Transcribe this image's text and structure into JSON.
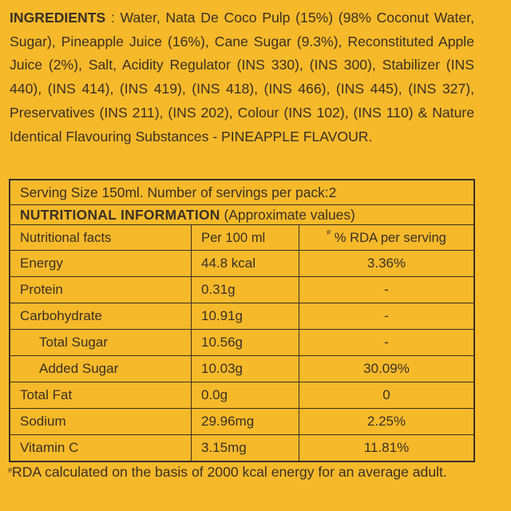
{
  "ingredients": {
    "heading": "INGREDIENTS",
    "text": ": Water, Nata De Coco Pulp (15%) (98% Coconut Water, Sugar), Pineapple Juice (16%), Cane Sugar (9.3%), Reconstituted Apple Juice (2%), Salt, Acidity Regulator (INS 330), (INS 300), Stabilizer (INS 440), (INS 414), (INS 419), (INS 418), (INS 466), (INS 445), (INS 327), Preservatives (INS 211), (INS 202), Colour (INS 102), (INS 110) & Nature Identical Flavouring Substances - PINEAPPLE FLAVOUR."
  },
  "table": {
    "serving": "Serving Size 150ml. Number of servings per pack:2",
    "title_bold": "NUTRITIONAL INFORMATION",
    "title_rest": " (Approximate values)",
    "headers": {
      "facts": "Nutritional facts",
      "per100": "Per 100 ml",
      "rda_mark": "#",
      "rda": " % RDA per serving"
    },
    "rows": [
      {
        "name": "Energy",
        "per100": "44.8 kcal",
        "rda": "3.36%"
      },
      {
        "name": "Protein",
        "per100": "0.31g",
        "rda": "-"
      },
      {
        "name": "Carbohydrate",
        "per100": "10.91g",
        "rda": "-"
      },
      {
        "name": "Total Sugar",
        "per100": "10.56g",
        "rda": "-"
      },
      {
        "name": "Added Sugar",
        "per100": "10.03g",
        "rda": "30.09%"
      },
      {
        "name": "Total Fat",
        "per100": "0.0g",
        "rda": "0"
      },
      {
        "name": "Sodium",
        "per100": "29.96mg",
        "rda": "2.25%"
      },
      {
        "name": "Vitamin C",
        "per100": "3.15mg",
        "rda": "11.81%"
      }
    ]
  },
  "footnote": {
    "mark": "#",
    "text": "RDA calculated on the basis of 2000 kcal energy for an average adult."
  }
}
